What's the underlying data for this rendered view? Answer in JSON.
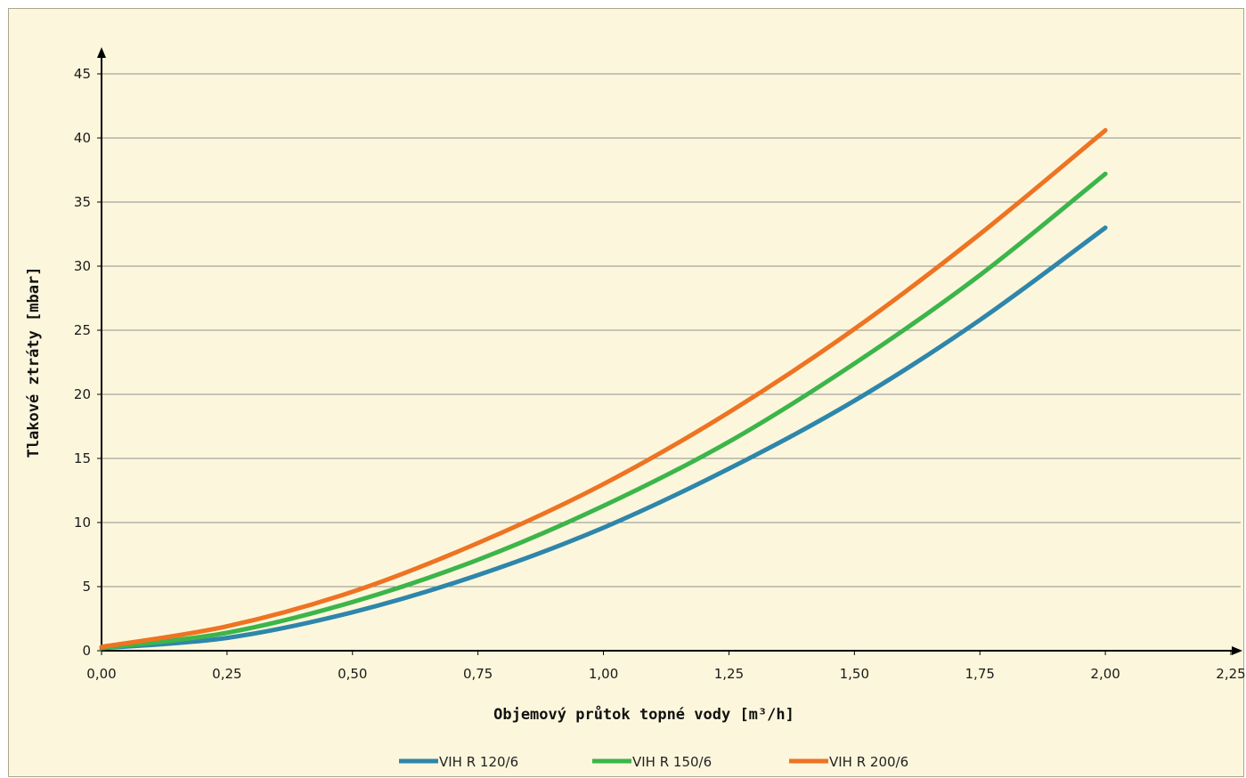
{
  "chart_data": {
    "type": "line",
    "title": "",
    "xlabel": "Objemový průtok topné vody [m³/h]",
    "ylabel": "Tlakové ztráty [mbar]",
    "xlim": [
      0,
      2.25
    ],
    "ylim": [
      0,
      45
    ],
    "x_ticks": [
      "0,00",
      "0,25",
      "0,50",
      "0,75",
      "1,00",
      "1,25",
      "1,50",
      "1,75",
      "2,00",
      "2,25"
    ],
    "y_ticks": [
      "0",
      "5",
      "10",
      "15",
      "20",
      "25",
      "30",
      "35",
      "40",
      "45"
    ],
    "grid": "horizontal",
    "legend_position": "bottom",
    "x": [
      0,
      0.25,
      0.5,
      0.75,
      1.0,
      1.25,
      1.5,
      1.75,
      2.0
    ],
    "series": [
      {
        "name": "VIH R 120/6",
        "color": "#2e86ab",
        "values": [
          0.2,
          1.0,
          3.0,
          5.9,
          9.6,
          14.2,
          19.5,
          25.8,
          33.0
        ]
      },
      {
        "name": "VIH R 150/6",
        "color": "#3cb54a",
        "values": [
          0.2,
          1.4,
          3.8,
          7.1,
          11.3,
          16.3,
          22.4,
          29.3,
          37.2
        ]
      },
      {
        "name": "VIH R 200/6",
        "color": "#ee7322",
        "values": [
          0.3,
          1.9,
          4.6,
          8.4,
          13.0,
          18.6,
          25.1,
          32.5,
          40.6
        ]
      }
    ]
  }
}
